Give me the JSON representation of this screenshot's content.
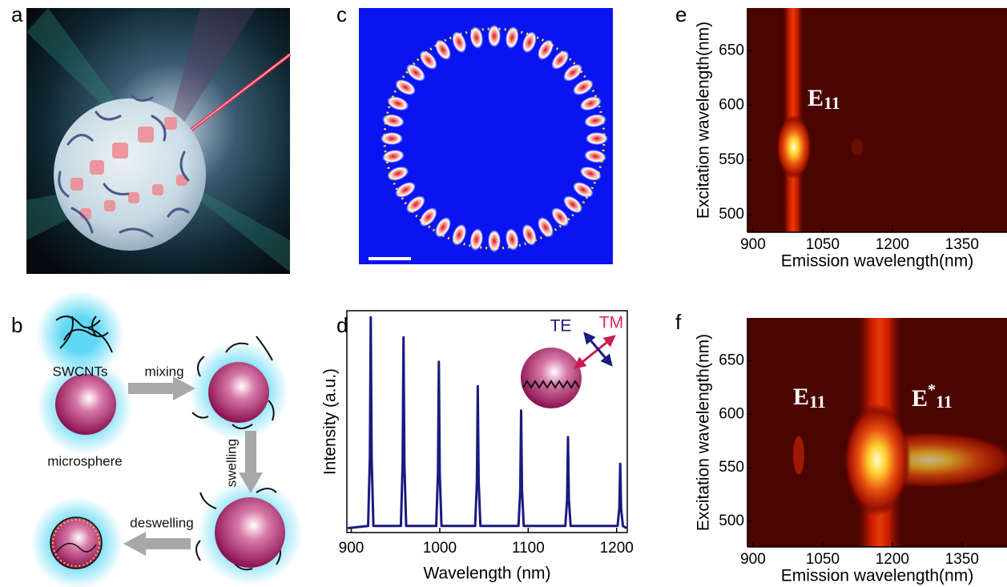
{
  "figure": {
    "panel_labels": [
      "a",
      "b",
      "c",
      "d",
      "e",
      "f"
    ],
    "panel_b": {
      "swcnts": "SWCNTs",
      "mixing": "mixing",
      "microsphere": "microsphere",
      "swelling": "swelling",
      "deswelling": "deswelling"
    }
  },
  "chart_data": [
    {
      "type": "line",
      "xlabel": "Wavelength (nm)",
      "ylabel": "Intensity (a.u.)",
      "color": "#1a1a80",
      "x": [
        896,
        919,
        921,
        922,
        923,
        925,
        956,
        958,
        959,
        960,
        962,
        996,
        998,
        999,
        1000,
        1002,
        1040,
        1042,
        1043,
        1044,
        1046,
        1089,
        1091,
        1092,
        1093,
        1095,
        1142,
        1144,
        1145,
        1146,
        1148,
        1201,
        1203,
        1204,
        1205,
        1207,
        1211
      ],
      "values": [
        0.02,
        0.03,
        0.34,
        0.97,
        0.34,
        0.03,
        0.03,
        0.31,
        0.88,
        0.31,
        0.03,
        0.03,
        0.27,
        0.77,
        0.27,
        0.03,
        0.03,
        0.23,
        0.66,
        0.23,
        0.03,
        0.03,
        0.19,
        0.55,
        0.19,
        0.03,
        0.03,
        0.15,
        0.43,
        0.15,
        0.03,
        0.03,
        0.11,
        0.31,
        0.11,
        0.03,
        0.02
      ],
      "xlim": [
        895,
        1212
      ],
      "ylim": [
        0,
        1
      ],
      "xticks": [
        900,
        1000,
        1100,
        1200
      ],
      "annotations": [
        "TE",
        "TM"
      ]
    },
    {
      "type": "heatmap",
      "xlabel": "Emission wavelength(nm)",
      "ylabel": "Excitation wavelength(nm)",
      "xlim": [
        888,
        1447
      ],
      "ylim": [
        484,
        689
      ],
      "xticks": [
        900,
        1050,
        1200,
        1350
      ],
      "yticks": [
        500,
        550,
        600,
        650
      ],
      "annotations": [
        {
          "text": "E",
          "subscript": "11"
        }
      ]
    },
    {
      "type": "heatmap",
      "xlabel": "Emission wavelength(nm)",
      "ylabel": "Excitation wavelength(nm)",
      "xlim": [
        888,
        1447
      ],
      "ylim": [
        476,
        690
      ],
      "xticks": [
        900,
        1050,
        1200,
        1350
      ],
      "yticks": [
        500,
        550,
        600,
        650
      ],
      "annotations": [
        {
          "text": "E",
          "subscript": "11"
        },
        {
          "text": "E",
          "superscript": "*",
          "subscript": "11"
        }
      ]
    }
  ]
}
